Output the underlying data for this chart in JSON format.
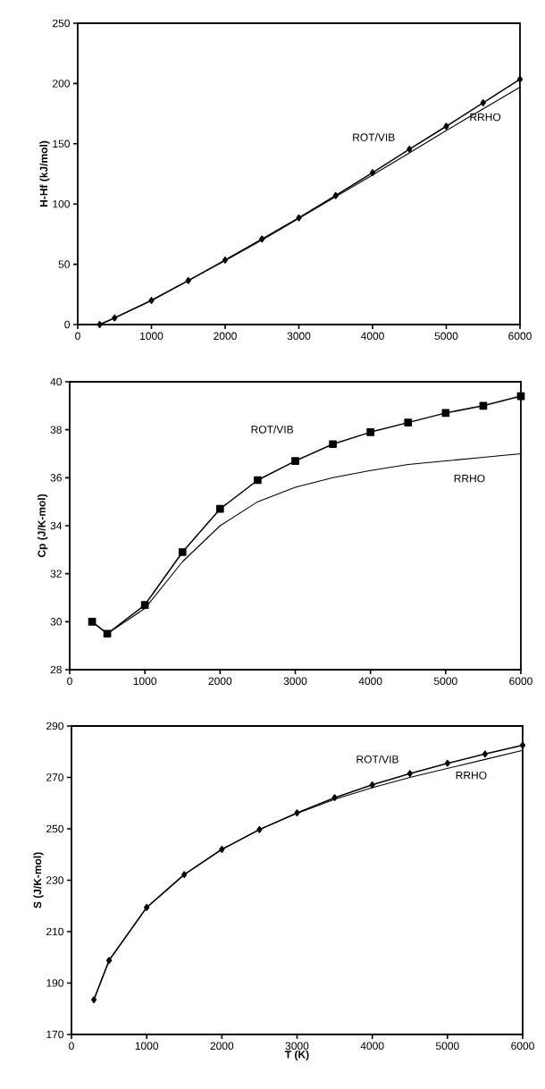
{
  "chart_data": [
    {
      "type": "line",
      "ylabel": "H-Hf (kJ/mol)",
      "x": [
        298,
        500,
        1000,
        1500,
        2000,
        2500,
        3000,
        3500,
        4000,
        4500,
        5000,
        5500,
        6000
      ],
      "xlim": [
        0,
        6000
      ],
      "xticks": [
        0,
        1000,
        2000,
        3000,
        4000,
        5000,
        6000
      ],
      "ylim": [
        0,
        250
      ],
      "yticks": [
        0,
        50,
        100,
        150,
        200,
        250
      ],
      "series": [
        {
          "name": "ROT/VIB",
          "color": "#000000",
          "marker": "diamond",
          "values": [
            0,
            5.5,
            20,
            36.5,
            53.5,
            71,
            88.5,
            107,
            126,
            145.5,
            164.5,
            184,
            203.5
          ]
        },
        {
          "name": "RRHO",
          "color": "#000000",
          "marker": "none",
          "values": [
            0,
            5.5,
            20,
            36.5,
            53,
            70,
            88,
            106,
            124,
            142.5,
            161,
            179,
            197
          ]
        }
      ]
    },
    {
      "type": "line",
      "ylabel": "Cp (J/K-mol)",
      "x": [
        298,
        500,
        1000,
        1500,
        2000,
        2500,
        3000,
        3500,
        4000,
        4500,
        5000,
        5500,
        6000
      ],
      "xlim": [
        0,
        6000
      ],
      "xticks": [
        0,
        1000,
        2000,
        3000,
        4000,
        5000,
        6000
      ],
      "ylim": [
        28,
        40
      ],
      "yticks": [
        28,
        30,
        32,
        34,
        36,
        38,
        40
      ],
      "series": [
        {
          "name": "ROT/VIB",
          "color": "#000000",
          "marker": "square",
          "values": [
            30.0,
            29.5,
            30.7,
            32.9,
            34.7,
            35.9,
            36.7,
            37.4,
            37.9,
            38.3,
            38.7,
            39.0,
            39.4
          ]
        },
        {
          "name": "RRHO",
          "color": "#000000",
          "marker": "none",
          "values": [
            30.0,
            29.5,
            30.55,
            32.5,
            34.0,
            35.0,
            35.6,
            36.0,
            36.3,
            36.55,
            36.7,
            36.85,
            37.0
          ]
        }
      ]
    },
    {
      "type": "line",
      "xlabel": "T (K)",
      "ylabel": "S (J/K-mol)",
      "x": [
        298,
        500,
        1000,
        1500,
        2000,
        2500,
        3000,
        3500,
        4000,
        4500,
        5000,
        5500,
        6000
      ],
      "xlim": [
        0,
        6000
      ],
      "xticks": [
        0,
        1000,
        2000,
        3000,
        4000,
        5000,
        6000
      ],
      "ylim": [
        170,
        290
      ],
      "yticks": [
        170,
        190,
        210,
        230,
        250,
        270,
        290
      ],
      "series": [
        {
          "name": "ROT/VIB",
          "color": "#000000",
          "marker": "diamond",
          "values": [
            183.5,
            198.8,
            219.4,
            232.2,
            242,
            249.7,
            256.2,
            262.1,
            267.1,
            271.5,
            275.5,
            279.1,
            282.5
          ]
        },
        {
          "name": "RRHO",
          "color": "#000000",
          "marker": "none",
          "values": [
            183.5,
            198.8,
            219.4,
            232.2,
            242,
            249.7,
            256,
            261.5,
            266,
            270,
            273.5,
            277,
            280.5
          ]
        }
      ]
    }
  ]
}
